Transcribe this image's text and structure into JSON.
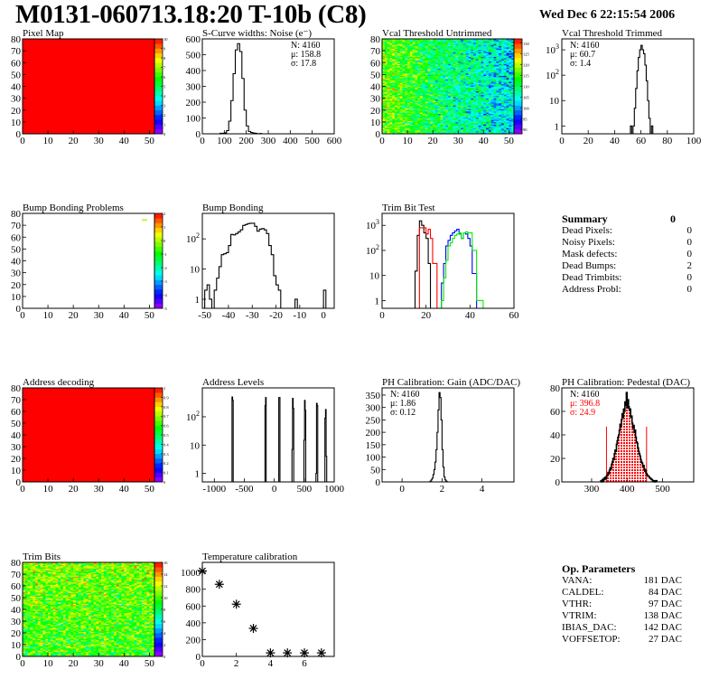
{
  "header": {
    "title": "M0131-060713.18:20 T-10b (C8)",
    "date": "Wed Dec  6 22:15:54 2006"
  },
  "summary": {
    "title": "Summary",
    "total": "0",
    "rows": [
      {
        "label": "Dead Pixels:",
        "value": "0"
      },
      {
        "label": "Noisy Pixels:",
        "value": "0"
      },
      {
        "label": "Mask defects:",
        "value": "0"
      },
      {
        "label": "Dead Bumps:",
        "value": "2"
      },
      {
        "label": "Dead Trimbits:",
        "value": "0"
      },
      {
        "label": "Address Probl:",
        "value": "0"
      }
    ]
  },
  "op_parameters": {
    "title": "Op. Parameters",
    "rows": [
      {
        "label": "VANA:",
        "value": "181 DAC"
      },
      {
        "label": "CALDEL:",
        "value": "84 DAC"
      },
      {
        "label": "VTHR:",
        "value": "97 DAC"
      },
      {
        "label": "VTRIM:",
        "value": "138 DAC"
      },
      {
        "label": "IBIAS_DAC:",
        "value": "142 DAC"
      },
      {
        "label": "VOFFSETOP:",
        "value": "27 DAC"
      }
    ]
  },
  "chart_data": [
    {
      "type": "heatmap",
      "title": "Pixel Map",
      "xlim": [
        0,
        52
      ],
      "ylim": [
        0,
        80
      ],
      "xticks": [
        0,
        10,
        20,
        30,
        40,
        50
      ],
      "yticks": [
        0,
        10,
        20,
        30,
        40,
        50,
        60,
        70,
        80
      ],
      "zlim": [
        0,
        10
      ],
      "zticks": [
        0,
        1,
        2,
        3,
        4,
        5,
        6,
        7,
        8,
        9,
        10
      ],
      "fill": "uniform",
      "uniform_value": 10
    },
    {
      "type": "histogram",
      "title": "S-Curve widths: Noise (e⁻)",
      "xlim": [
        0,
        600
      ],
      "ylim": [
        0,
        600
      ],
      "xticks": [
        0,
        100,
        200,
        300,
        400,
        500,
        600
      ],
      "yticks": [
        0,
        100,
        200,
        300,
        400,
        500,
        600
      ],
      "start": 80,
      "binwidth": 10,
      "values": [
        3,
        3,
        6,
        20,
        80,
        210,
        380,
        530,
        570,
        520,
        350,
        150,
        50,
        15,
        8,
        5,
        3,
        0,
        2
      ],
      "stats": [
        {
          "text": "N: 4160",
          "color": "#000000"
        },
        {
          "text": "μ: 158.8",
          "color": "#000000"
        },
        {
          "text": "σ: 17.8",
          "color": "#000000"
        }
      ]
    },
    {
      "type": "heatmap",
      "title": "Vcal Threshold Untrimmed",
      "xlim": [
        0,
        52
      ],
      "ylim": [
        0,
        80
      ],
      "xticks": [
        0,
        10,
        20,
        30,
        40,
        50
      ],
      "yticks": [
        0,
        10,
        20,
        30,
        40,
        50,
        60,
        70,
        80
      ],
      "zlim": [
        88,
        132
      ],
      "zticks": [
        90,
        95,
        100,
        105,
        110,
        115,
        120,
        125,
        130
      ],
      "fill": "random"
    },
    {
      "type": "histogram",
      "title": "Vcal Threshold Trimmed",
      "ylog": true,
      "xlim": [
        0,
        100
      ],
      "ylim": [
        0.49,
        2700
      ],
      "xticks": [
        0,
        20,
        40,
        60,
        80,
        100
      ],
      "yticks": [
        1,
        10,
        100,
        1000
      ],
      "start": 52,
      "binwidth": 1,
      "values": [
        1,
        0,
        1,
        5,
        30,
        150,
        500,
        1000,
        1500,
        1000,
        700,
        250,
        60,
        10,
        2,
        0,
        1
      ],
      "stats": [
        {
          "text": "N: 4160",
          "color": "#000000"
        },
        {
          "text": "μ: 60.7",
          "color": "#000000"
        },
        {
          "text": "σ:  1.4",
          "color": "#000000"
        }
      ]
    },
    {
      "type": "heatmap",
      "title": "Bump Bonding Problems",
      "xlim": [
        0,
        52
      ],
      "ylim": [
        0,
        80
      ],
      "xticks": [
        0,
        10,
        20,
        30,
        40,
        50
      ],
      "yticks": [
        0,
        10,
        20,
        30,
        40,
        50,
        60,
        70,
        80
      ],
      "zlim": [
        -5,
        2
      ],
      "zticks": [
        -5,
        -4,
        -3,
        -2,
        -1,
        0,
        1,
        2
      ],
      "fill": "cells",
      "cells": [
        [
          47,
          74,
          0
        ],
        [
          48,
          74,
          0
        ]
      ]
    },
    {
      "type": "histogram",
      "title": "Bump Bonding",
      "ylog": true,
      "xlim": [
        -51,
        4.5
      ],
      "ylim": [
        0.5,
        700
      ],
      "xticks": [
        -50,
        -40,
        -30,
        -20,
        -10,
        0
      ],
      "yticks": [
        1,
        10,
        100
      ],
      "start": -50,
      "binwidth": 1,
      "values": [
        2,
        3,
        1,
        0,
        2,
        5,
        12,
        30,
        32,
        35,
        60,
        140,
        135,
        150,
        170,
        200,
        280,
        300,
        320,
        330,
        330,
        260,
        180,
        210,
        220,
        200,
        150,
        60,
        30,
        6,
        3,
        2,
        0,
        0,
        0,
        0,
        0,
        0,
        1,
        0,
        0,
        0,
        0,
        0,
        0,
        0,
        0,
        0,
        0,
        0,
        2
      ]
    },
    {
      "type": "histogram",
      "title": "Trim Bit Test",
      "ylog": true,
      "xlim": [
        0,
        60
      ],
      "ylim": [
        0.49,
        3000
      ],
      "xticks": [
        0,
        20,
        40,
        60
      ],
      "yticks": [
        1,
        10,
        100,
        1000
      ],
      "series": [
        {
          "color": "#000000",
          "start": 15,
          "binwidth": 1,
          "values": [
            15,
            400,
            1500,
            1000,
            500,
            300,
            30
          ]
        },
        {
          "color": "#ff0000",
          "start": 17,
          "binwidth": 1,
          "values": [
            800,
            800,
            800,
            450,
            700,
            300,
            30,
            30
          ]
        },
        {
          "color": "#0000ff",
          "start": 27,
          "binwidth": 1,
          "values": [
            5,
            30,
            150,
            250,
            400,
            500,
            600,
            700,
            450,
            300,
            500,
            450,
            300,
            150,
            12,
            12
          ]
        },
        {
          "color": "#00ee00",
          "start": 27,
          "binwidth": 1,
          "values": [
            1,
            8,
            40,
            150,
            200,
            300,
            400,
            450,
            500,
            300,
            500,
            550,
            500,
            500,
            100,
            100,
            1,
            1,
            1
          ]
        }
      ]
    },
    {
      "type": "heatmap",
      "title": "Address decoding",
      "xlim": [
        0,
        52
      ],
      "ylim": [
        0,
        80
      ],
      "xticks": [
        0,
        10,
        20,
        30,
        40,
        50
      ],
      "yticks": [
        0,
        10,
        20,
        30,
        40,
        50,
        60,
        70,
        80
      ],
      "zlim": [
        0,
        1
      ],
      "zticks": [
        0,
        0.1,
        0.2,
        0.3,
        0.4,
        0.5,
        0.6,
        0.7,
        0.8,
        0.9,
        1
      ],
      "fill": "uniform",
      "uniform_value": 1
    },
    {
      "type": "histogram",
      "title": "Address Levels",
      "ylog": true,
      "xlim": [
        -1200,
        1000
      ],
      "ylim": [
        0.5,
        1050
      ],
      "xticks": [
        -1000,
        -500,
        0,
        500,
        1000
      ],
      "yticks": [
        1,
        10,
        100
      ],
      "binwidth": 10,
      "bins": [
        [
          -705,
          500
        ],
        [
          -695,
          380
        ],
        [
          -155,
          250
        ],
        [
          -145,
          480
        ],
        [
          75,
          480
        ],
        [
          85,
          480
        ],
        [
          295,
          7
        ],
        [
          305,
          450
        ],
        [
          315,
          200
        ],
        [
          495,
          15
        ],
        [
          505,
          380
        ],
        [
          515,
          170
        ],
        [
          695,
          1
        ],
        [
          705,
          300
        ],
        [
          715,
          250
        ],
        [
          845,
          90
        ],
        [
          855,
          180
        ],
        [
          865,
          4
        ]
      ]
    },
    {
      "type": "histogram",
      "title": "PH Calibration: Gain (ADC/DAC)",
      "xlim": [
        -1,
        5.6
      ],
      "ylim": [
        0,
        379
      ],
      "xticks": [
        0,
        2,
        4
      ],
      "yticks": [
        0,
        50,
        100,
        150,
        200,
        250,
        300,
        350
      ],
      "start": 1.4,
      "binwidth": 0.05,
      "values": [
        3,
        8,
        15,
        30,
        50,
        80,
        130,
        200,
        290,
        360,
        340,
        250,
        130,
        60,
        20,
        8,
        3
      ],
      "stats": [
        {
          "text": "N: 4160",
          "color": "#000000"
        },
        {
          "text": "μ: 1.86",
          "color": "#000000"
        },
        {
          "text": "σ: 0.12",
          "color": "#000000"
        }
      ]
    },
    {
      "type": "histogram",
      "title": "PH Calibration: Pedestal (DAC)",
      "xlim": [
        216,
        588
      ],
      "ylim": [
        0,
        80
      ],
      "xticks": [
        300,
        400,
        500
      ],
      "yticks": [
        0,
        20,
        40,
        60,
        80
      ],
      "start": 326,
      "binwidth": 2,
      "values": [
        1,
        0,
        2,
        1,
        3,
        2,
        4,
        3,
        5,
        6,
        8,
        7,
        10,
        12,
        11,
        15,
        17,
        20,
        19,
        24,
        27,
        26,
        32,
        35,
        38,
        40,
        44,
        49,
        47,
        53,
        58,
        55,
        62,
        60,
        68,
        65,
        76,
        63,
        70,
        64,
        61,
        62,
        55,
        56,
        50,
        46,
        48,
        42,
        44,
        38,
        34,
        33,
        29,
        26,
        24,
        22,
        19,
        17,
        16,
        13,
        14,
        11,
        9,
        10,
        7,
        6,
        5,
        5,
        4,
        3,
        3,
        2,
        2,
        1,
        1,
        1,
        0,
        1,
        1
      ],
      "fit_range": [
        342,
        455
      ],
      "fit_color": "#ff0000",
      "stats": [
        {
          "text": "N: 4160",
          "color": "#000000"
        },
        {
          "text": "μ: 396.8",
          "color": "#ff0000"
        },
        {
          "text": "σ: 24.9",
          "color": "#ff0000"
        }
      ]
    },
    {
      "type": "heatmap",
      "title": "Trim Bits",
      "xlim": [
        0,
        52
      ],
      "ylim": [
        0,
        80
      ],
      "xticks": [
        0,
        10,
        20,
        30,
        40,
        50
      ],
      "yticks": [
        0,
        10,
        20,
        30,
        40,
        50,
        60,
        70,
        80
      ],
      "zlim": [
        0,
        16
      ],
      "zticks": [
        0,
        2,
        4,
        6,
        8,
        10,
        12,
        14,
        16
      ],
      "fill": "random"
    },
    {
      "type": "scatter",
      "title": "Temperature calibration",
      "marker": "asterisk",
      "xlim": [
        0,
        7.75
      ],
      "ylim": [
        0,
        1120
      ],
      "xticks": [
        0,
        2,
        4,
        6
      ],
      "yticks": [
        0,
        200,
        400,
        600,
        800,
        1000
      ],
      "x": [
        0,
        1,
        2,
        3,
        4,
        5,
        6,
        7
      ],
      "y": [
        1017,
        859,
        622,
        334,
        42,
        42,
        42,
        42
      ]
    }
  ]
}
